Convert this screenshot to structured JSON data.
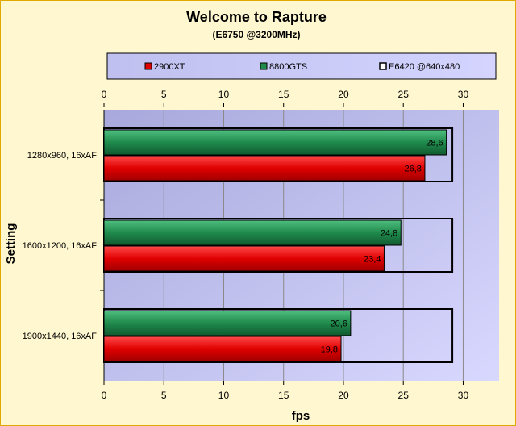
{
  "chart_data": {
    "type": "bar",
    "orientation": "horizontal",
    "title": "Welcome to Rapture",
    "subtitle": "(E6750 @3200MHz)",
    "xlabel": "fps",
    "ylabel": "Setting",
    "xlim": [
      0,
      33
    ],
    "xticks": [
      0,
      5,
      10,
      15,
      20,
      25,
      30
    ],
    "grid": true,
    "legend_position": "top",
    "categories": [
      "1280x960, 16xAF",
      "1600x1200, 16xAF",
      "1900x1440, 16xAF"
    ],
    "series": [
      {
        "name": "2900XT",
        "values": [
          26.8,
          23.4,
          19.8
        ],
        "color": "#e00000",
        "label_text": [
          "26,8",
          "23,4",
          "19,8"
        ]
      },
      {
        "name": "8800GTS",
        "values": [
          28.6,
          24.8,
          20.6
        ],
        "color": "#1f8a4c",
        "label_text": [
          "28,6",
          "24,8",
          "20,6"
        ]
      },
      {
        "name": "E6420 @640x480",
        "values": [
          29.1,
          29.1,
          29.1
        ],
        "color": "none",
        "label_text": []
      }
    ],
    "colors": {
      "plot_background": "#c6c6f5",
      "legend_background": "#c6c6f5",
      "chart_background": "#fff7cf",
      "border": "#e0a800"
    }
  }
}
